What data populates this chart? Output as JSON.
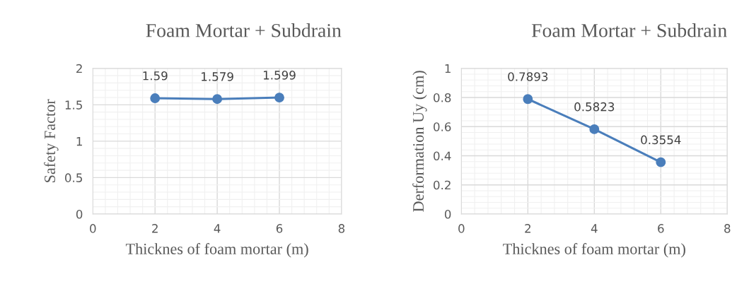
{
  "chart_data": [
    {
      "type": "line",
      "title": "Foam Mortar + Subdrain",
      "xlabel": "Thicknes of foam mortar (m)",
      "ylabel": "Safety Factor",
      "x": [
        2,
        4,
        6
      ],
      "series": [
        {
          "color": "#4a7ebb",
          "values": [
            1.59,
            1.579,
            1.599
          ]
        }
      ],
      "xlim": [
        0,
        8
      ],
      "xticks": [
        0,
        2,
        4,
        6,
        8
      ],
      "ylim": [
        0,
        2
      ],
      "yticks": [
        0,
        0.5,
        1,
        1.5,
        2
      ],
      "grid": true,
      "marker": "circle",
      "line_style": "solid",
      "data_labels": true,
      "legend": false
    },
    {
      "type": "line",
      "title": "Foam Mortar + Subdrain",
      "xlabel": "Thicknes of foam mortar (m)",
      "ylabel": "Derformation Uy (cm)",
      "x": [
        2,
        4,
        6
      ],
      "series": [
        {
          "color": "#4a7ebb",
          "values": [
            0.7893,
            0.5823,
            0.3554
          ]
        }
      ],
      "xlim": [
        0,
        8
      ],
      "xticks": [
        0,
        2,
        4,
        6,
        8
      ],
      "ylim": [
        0,
        1
      ],
      "yticks": [
        0,
        0.2,
        0.4,
        0.6,
        0.8,
        1
      ],
      "grid": true,
      "marker": "circle",
      "line_style": "solid",
      "data_labels": true,
      "legend": false
    }
  ]
}
